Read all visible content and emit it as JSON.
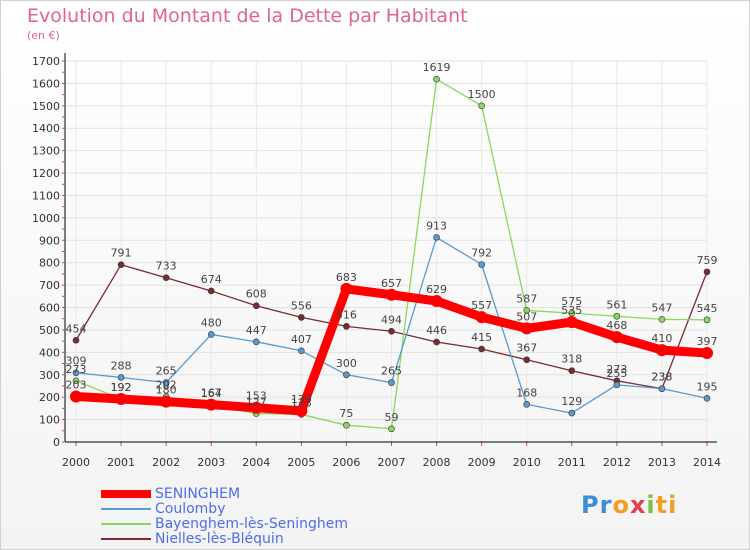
{
  "title": "Evolution du Montant de la Dette par Habitant",
  "unit": "(en €)",
  "logo": {
    "parts": [
      {
        "text": "Pr",
        "color": "#3a8fd8"
      },
      {
        "text": "o",
        "color": "#f0a020"
      },
      {
        "text": "x",
        "color": "#e04050"
      },
      {
        "text": "i",
        "color": "#7cc040"
      },
      {
        "text": "ti",
        "color": "#f0a020"
      }
    ]
  },
  "chart_data": {
    "type": "line",
    "title": "Evolution du Montant de la Dette par Habitant",
    "ylabel": "(en €)",
    "xlabel": "",
    "categories": [
      "2000",
      "2001",
      "2002",
      "2003",
      "2004",
      "2005",
      "2006",
      "2007",
      "2008",
      "2009",
      "2010",
      "2011",
      "2012",
      "2013",
      "2014"
    ],
    "ylim": [
      0,
      1700
    ],
    "yticks": [
      0,
      100,
      200,
      300,
      400,
      500,
      600,
      700,
      800,
      900,
      1000,
      1100,
      1200,
      1300,
      1400,
      1500,
      1600,
      1700
    ],
    "grid": true,
    "legend_position": "bottom-left",
    "series": [
      {
        "name": "Nielles-lès-Bléquin",
        "color": "#7a2a30",
        "emphasis": false,
        "values": [
          454,
          791,
          733,
          674,
          608,
          556,
          516,
          494,
          446,
          415,
          367,
          318,
          273,
          238,
          759
        ]
      },
      {
        "name": "Bayenghem-lès-Seninghem",
        "color": "#88d860",
        "emphasis": false,
        "values": [
          273,
          192,
          202,
          164,
          127,
          123,
          75,
          59,
          1619,
          1500,
          587,
          575,
          561,
          547,
          545
        ]
      },
      {
        "name": "Coulomby",
        "color": "#5a9ad0",
        "emphasis": false,
        "values": [
          309,
          288,
          265,
          480,
          447,
          407,
          300,
          265,
          913,
          792,
          168,
          129,
          255,
          238,
          195
        ]
      },
      {
        "name": "SENINGHEM",
        "color": "#ff0000",
        "emphasis": true,
        "values": [
          203,
          192,
          180,
          167,
          153,
          139,
          683,
          657,
          629,
          557,
          507,
          535,
          468,
          410,
          397
        ]
      }
    ],
    "legend_order": [
      "SENINGHEM",
      "Coulomby",
      "Bayenghem-lès-Seninghem",
      "Nielles-lès-Bléquin"
    ]
  }
}
